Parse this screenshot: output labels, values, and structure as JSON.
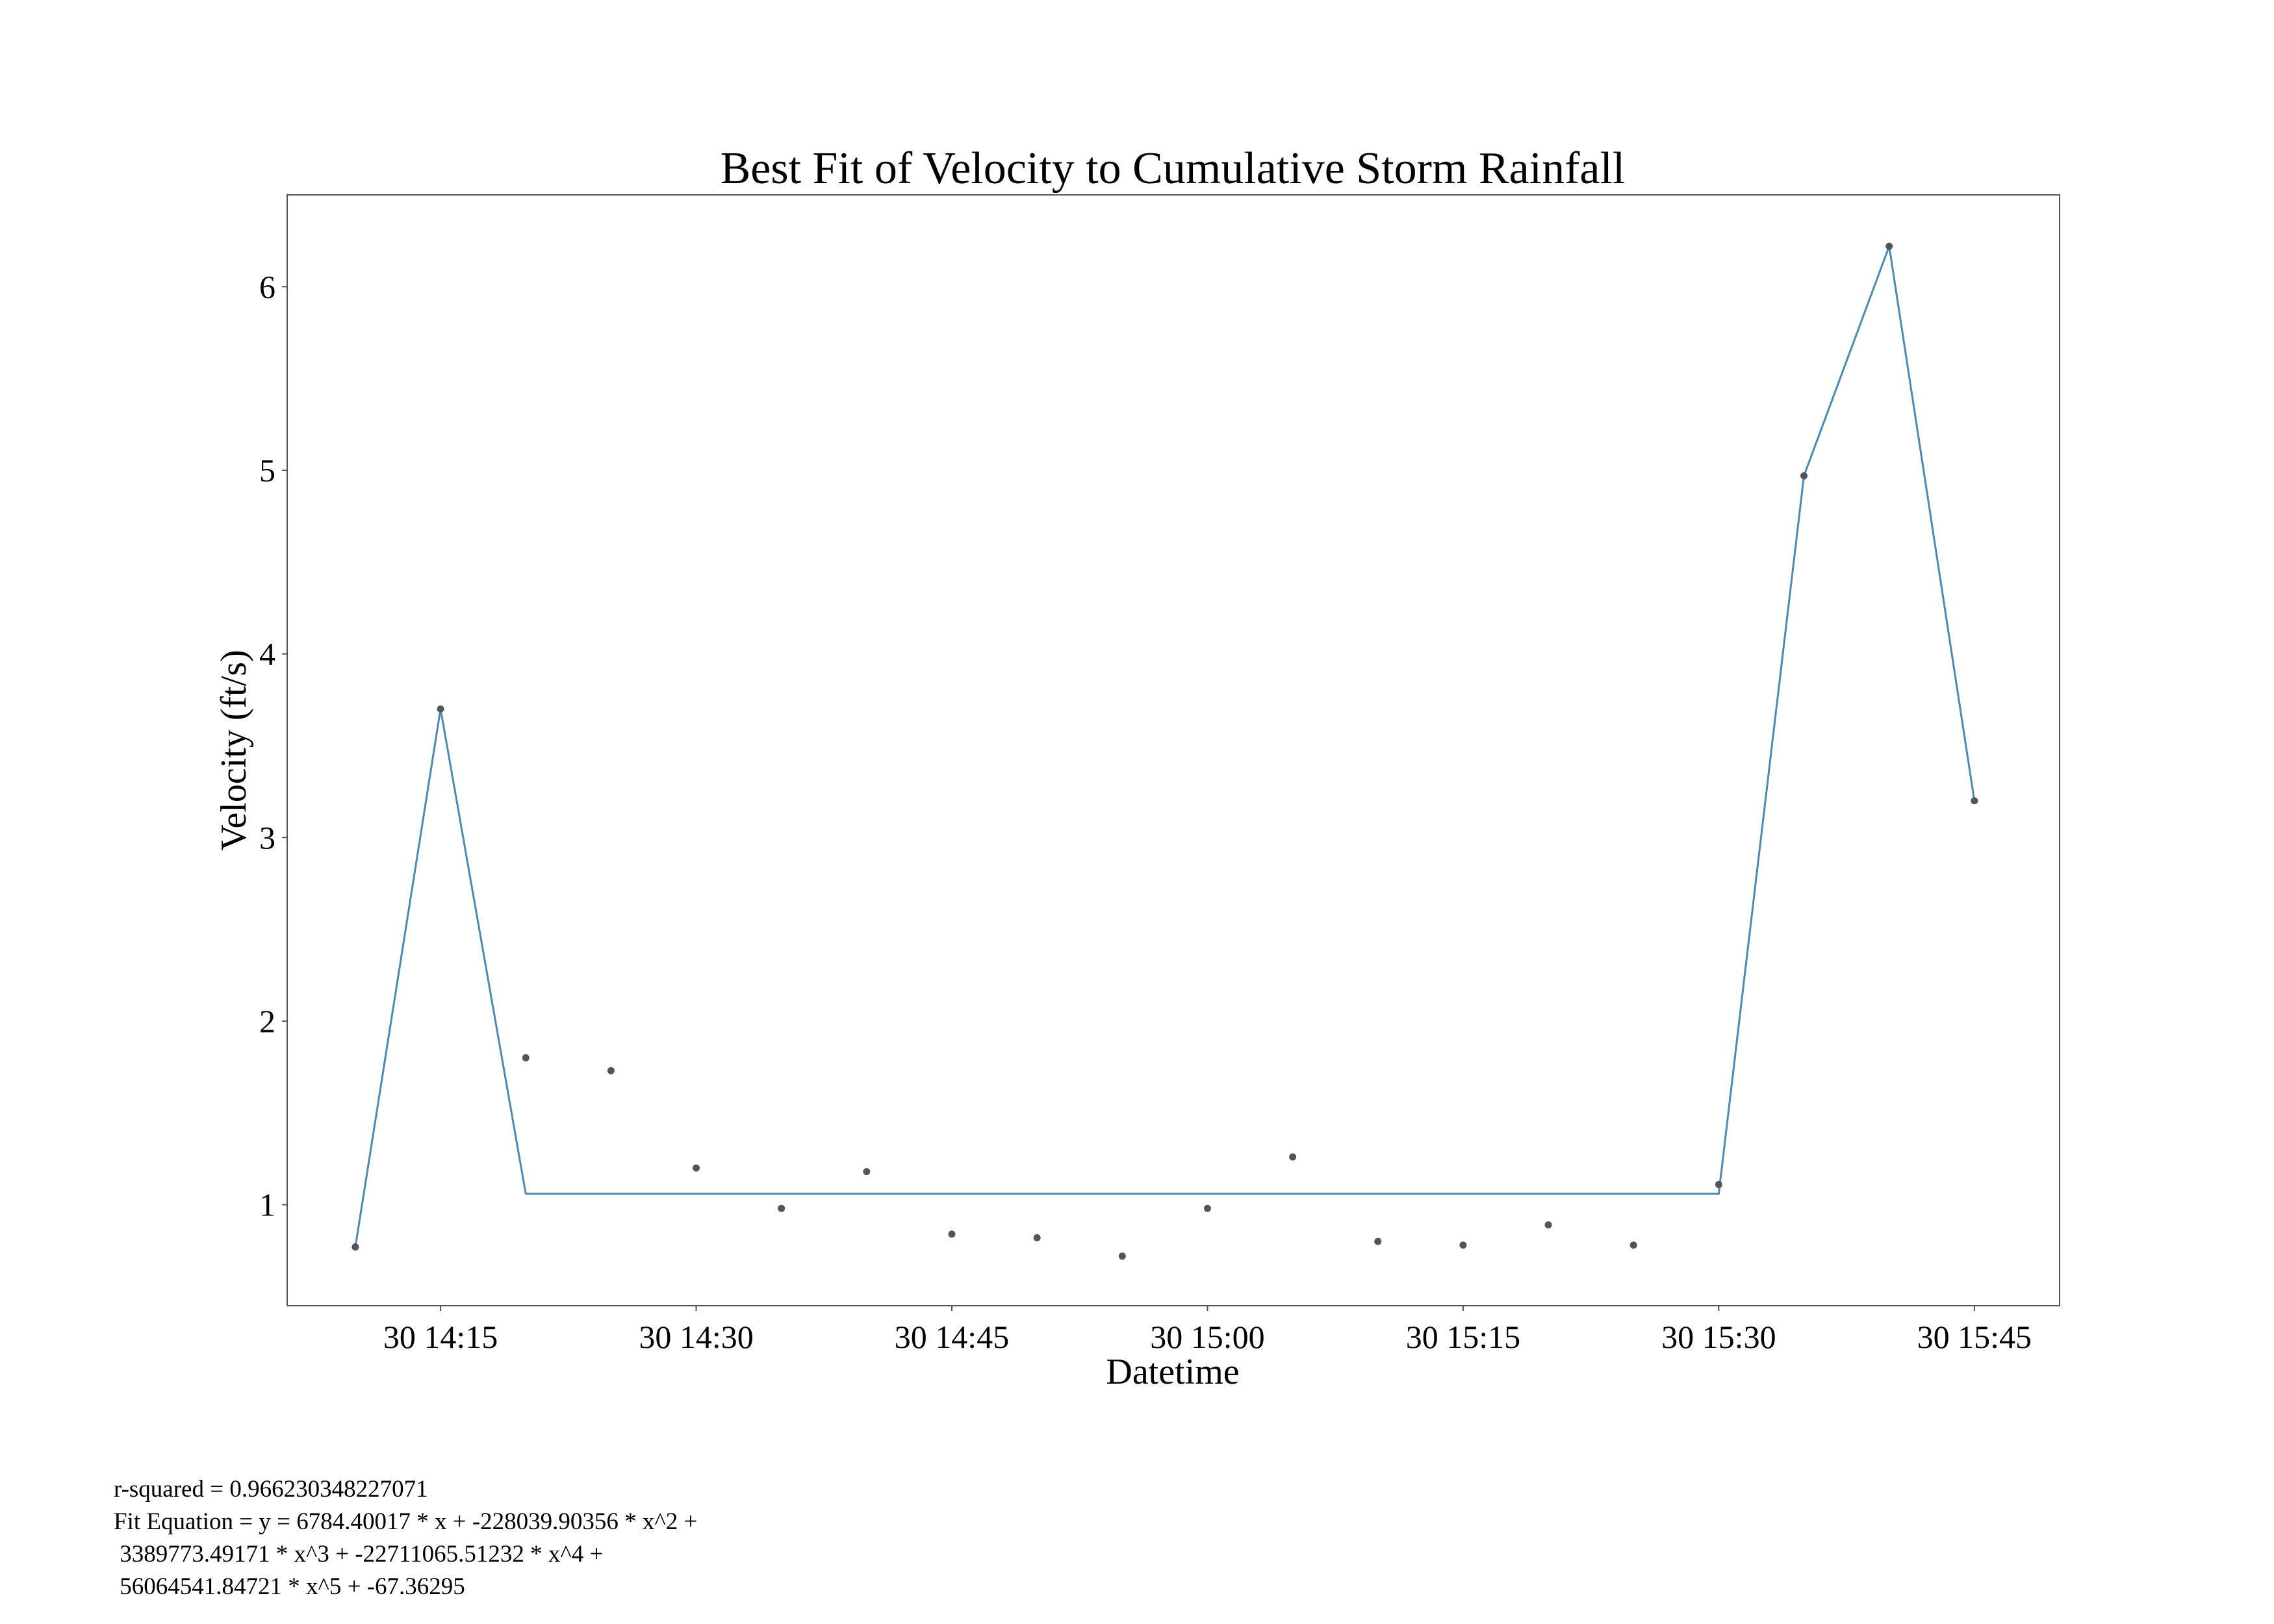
{
  "chart_data": {
    "type": "line",
    "title": "Best Fit of Velocity to Cumulative Storm Rainfall",
    "xlabel": "Datetime",
    "ylabel": "Velocity (ft/s)",
    "x_ticks": [
      "30 14:15",
      "30 14:30",
      "30 14:45",
      "30 15:00",
      "30 15:15",
      "30 15:30",
      "30 15:45"
    ],
    "y_ticks": [
      "1",
      "2",
      "3",
      "4",
      "5",
      "6"
    ],
    "xlim": [
      "14:06",
      "15:50"
    ],
    "ylim": [
      0.45,
      6.5
    ],
    "grid": false,
    "series": [
      {
        "kind": "scatter",
        "color": "#555555",
        "points": [
          {
            "x": "14:10",
            "y": 0.77
          },
          {
            "x": "14:15",
            "y": 3.7
          },
          {
            "x": "14:20",
            "y": 1.8
          },
          {
            "x": "14:25",
            "y": 1.73
          },
          {
            "x": "14:30",
            "y": 1.2
          },
          {
            "x": "14:35",
            "y": 0.98
          },
          {
            "x": "14:40",
            "y": 1.18
          },
          {
            "x": "14:45",
            "y": 0.84
          },
          {
            "x": "14:50",
            "y": 0.82
          },
          {
            "x": "14:55",
            "y": 0.72
          },
          {
            "x": "15:00",
            "y": 0.98
          },
          {
            "x": "15:05",
            "y": 1.26
          },
          {
            "x": "15:10",
            "y": 0.8
          },
          {
            "x": "15:15",
            "y": 0.78
          },
          {
            "x": "15:20",
            "y": 0.89
          },
          {
            "x": "15:25",
            "y": 0.78
          },
          {
            "x": "15:30",
            "y": 1.11
          },
          {
            "x": "15:35",
            "y": 4.97
          },
          {
            "x": "15:40",
            "y": 6.22
          },
          {
            "x": "15:45",
            "y": 3.2
          }
        ]
      },
      {
        "kind": "line",
        "color": "#4a8ab5",
        "points": [
          {
            "x": "14:10",
            "y": 0.77
          },
          {
            "x": "14:15",
            "y": 3.7
          },
          {
            "x": "14:20",
            "y": 1.06
          },
          {
            "x": "15:30",
            "y": 1.06
          },
          {
            "x": "15:35",
            "y": 4.97
          },
          {
            "x": "15:40",
            "y": 6.22
          },
          {
            "x": "15:45",
            "y": 3.2
          }
        ]
      }
    ]
  },
  "annotation": {
    "text": "r-squared = 0.966230348227071\nFit Equation = y = 6784.40017 * x + -228039.90356 * x^2 + \n 3389773.49171 * x^3 + -22711065.51232 * x^4 + \n 56064541.84721 * x^5 + -67.36295"
  }
}
